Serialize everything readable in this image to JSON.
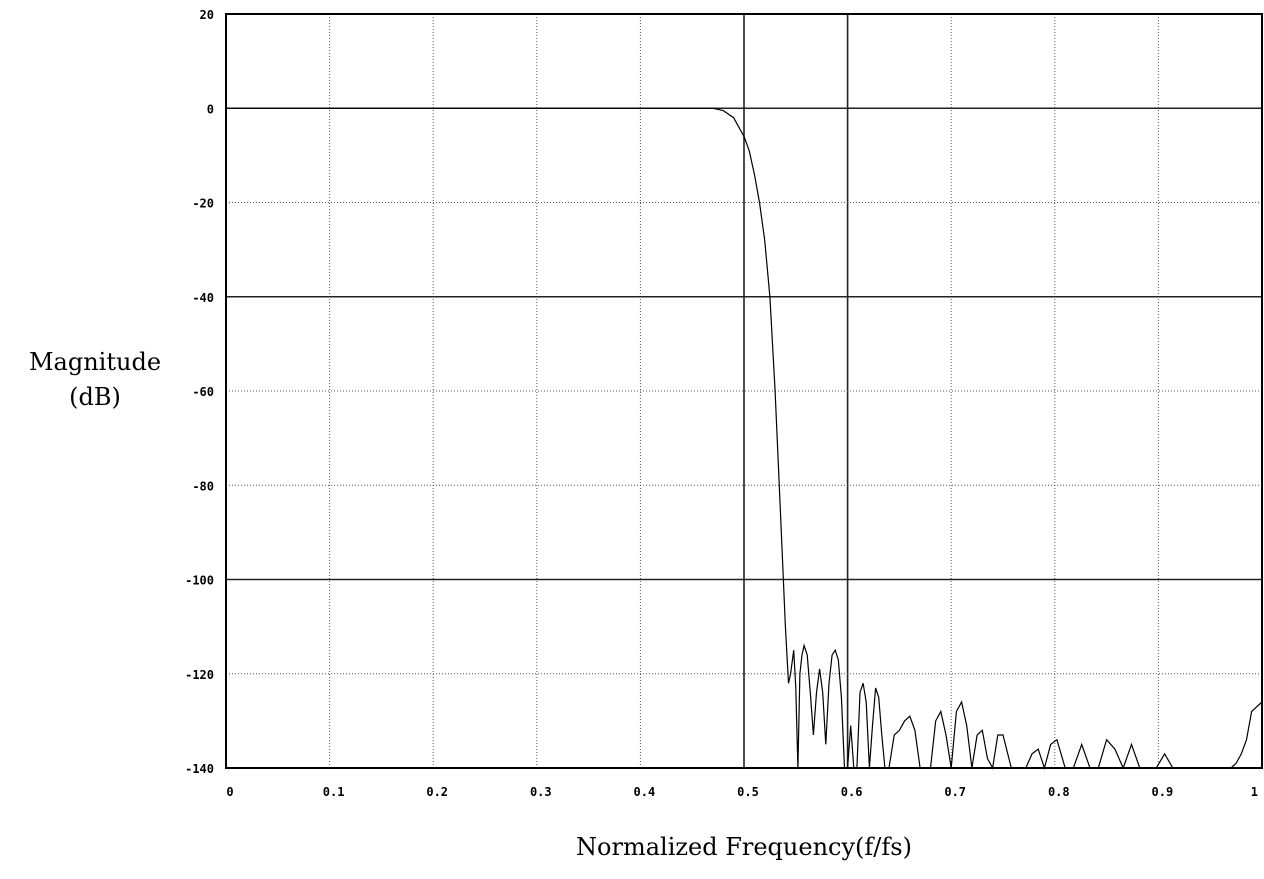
{
  "chart_data": {
    "type": "line",
    "title": "",
    "xlabel": "Normalized Frequency(f/fs)",
    "ylabel_lines": [
      "Magnitude",
      "(dB)"
    ],
    "xlim": [
      0,
      1
    ],
    "ylim": [
      -140,
      20
    ],
    "grid": true,
    "legend": "none",
    "x_ticks": [
      0,
      0.1,
      0.2,
      0.3,
      0.4,
      0.5,
      0.6,
      0.7,
      0.8,
      0.9,
      1
    ],
    "x_tick_labels": [
      "0",
      "0.1",
      "0.2",
      "0.3",
      "0.4",
      "0.5",
      "0.6",
      "0.7",
      "0.8",
      "0.9",
      "1"
    ],
    "y_ticks": [
      20,
      0,
      -20,
      -40,
      -60,
      -80,
      -100,
      -120,
      -140
    ],
    "y_tick_labels": [
      "20",
      "0",
      "-20",
      "-40",
      "-60",
      "-80",
      "-100",
      "-120",
      "-140"
    ],
    "series": [
      {
        "x": [
          0,
          0.46,
          0.47,
          0.48,
          0.49,
          0.5,
          0.505,
          0.51,
          0.515,
          0.52,
          0.525,
          0.53,
          0.535,
          0.54,
          0.543,
          0.545,
          0.548,
          0.55,
          0.552,
          0.554,
          0.556,
          0.558,
          0.561,
          0.564,
          0.567,
          0.57,
          0.573,
          0.576,
          0.579,
          0.582,
          0.585,
          0.588,
          0.591,
          0.594,
          0.597,
          0.6,
          0.603,
          0.606,
          0.609,
          0.612,
          0.615,
          0.618,
          0.621,
          0.624,
          0.627,
          0.63,
          0.633,
          0.636,
          0.64,
          0.645,
          0.65,
          0.655,
          0.66,
          0.665,
          0.67,
          0.675,
          0.68,
          0.685,
          0.69,
          0.695,
          0.7,
          0.705,
          0.71,
          0.715,
          0.72,
          0.725,
          0.73,
          0.735,
          0.74,
          0.745,
          0.75,
          0.758,
          0.765,
          0.772,
          0.778,
          0.784,
          0.79,
          0.796,
          0.802,
          0.81,
          0.818,
          0.826,
          0.834,
          0.842,
          0.85,
          0.858,
          0.866,
          0.874,
          0.882,
          0.89,
          0.898,
          0.906,
          0.914,
          0.922,
          0.93,
          0.95,
          0.97,
          0.975,
          0.98,
          0.985,
          0.99,
          0.995,
          1.0
        ],
        "y": [
          0,
          0,
          0,
          -0.5,
          -2,
          -6,
          -9,
          -14,
          -20,
          -28,
          -40,
          -60,
          -85,
          -110,
          -122,
          -120,
          -115,
          -123,
          -140,
          -120,
          -116,
          -114,
          -116,
          -124,
          -133,
          -124,
          -119,
          -124,
          -135,
          -122,
          -116,
          -115,
          -117,
          -125,
          -140,
          -140,
          -131,
          -140,
          -140,
          -124,
          -122,
          -126,
          -140,
          -131,
          -123,
          -125,
          -133,
          -140,
          -140,
          -133,
          -132,
          -130,
          -129,
          -132,
          -140,
          -140,
          -140,
          -130,
          -128,
          -133,
          -140,
          -128,
          -126,
          -131,
          -140,
          -133,
          -132,
          -138,
          -140,
          -133,
          -133,
          -140,
          -140,
          -140,
          -137,
          -136,
          -140,
          -135,
          -134,
          -140,
          -140,
          -135,
          -140,
          -140,
          -134,
          -136,
          -140,
          -135,
          -140,
          -140,
          -140,
          -137,
          -140,
          -140,
          -140,
          -140,
          -140,
          -139,
          -137,
          -134,
          -128,
          -127,
          -126
        ]
      }
    ]
  }
}
